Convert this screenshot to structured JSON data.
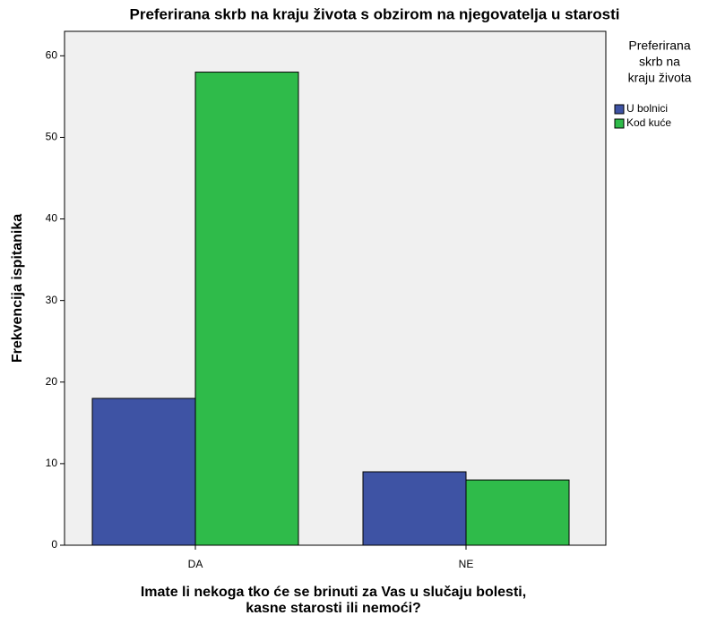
{
  "chart_data": {
    "type": "bar",
    "title": "Preferirana skrb na kraju života s obzirom na njegovatelja u starosti",
    "xlabel": [
      "Imate li nekoga tko će se brinuti za Vas u slučaju bolesti,",
      "kasne starosti ili nemoći?"
    ],
    "ylabel": "Frekvencija ispitanika",
    "legend_title": [
      "Preferirana",
      "skrb na",
      "kraju života"
    ],
    "categories": [
      "DA",
      "NE"
    ],
    "series": [
      {
        "name": "U bolnici",
        "color": "#3e53a4",
        "values": [
          18,
          9
        ]
      },
      {
        "name": "Kod kuće",
        "color": "#2fbb4a",
        "values": [
          58,
          8
        ]
      }
    ],
    "ylim": [
      0,
      63
    ],
    "yticks": [
      0,
      10,
      20,
      30,
      40,
      50,
      60
    ]
  }
}
